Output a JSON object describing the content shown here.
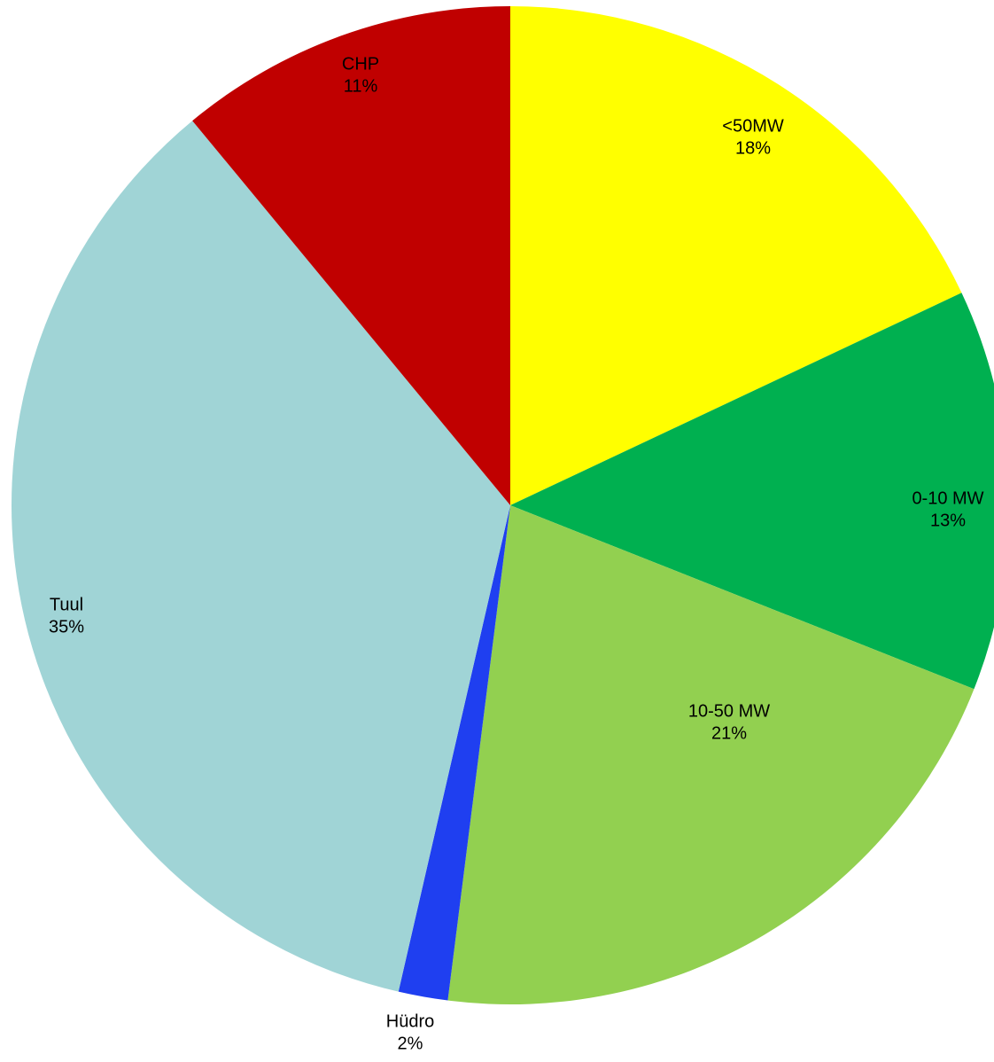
{
  "chart_data": {
    "type": "pie",
    "categories": [
      "<50MW",
      "0-10 MW",
      "10-50 MW",
      "Hüdro",
      "Tuul",
      "CHP"
    ],
    "values": [
      18,
      13,
      21,
      1.6,
      35.4,
      11
    ],
    "value_labels": [
      "18%",
      "13%",
      "21%",
      "2%",
      "35%",
      "11%"
    ],
    "colors": [
      "#ffff00",
      "#00b050",
      "#92d050",
      "#1f3ff0",
      "#a0d4d6",
      "#c00000"
    ]
  }
}
